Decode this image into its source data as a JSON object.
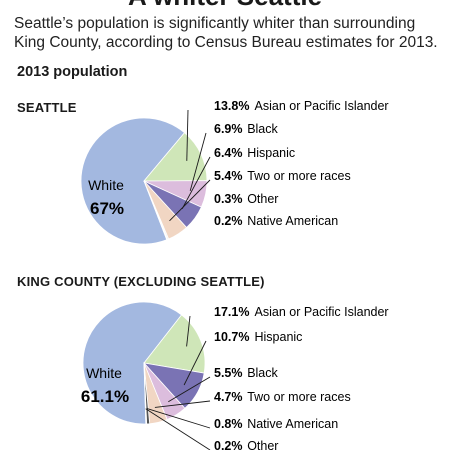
{
  "header": {
    "headline": "A whiter Seattle",
    "intro": "Seattle’s population is significantly whiter than surrounding King County, according to Census Bureau estimates for 2013.",
    "section_title": "2013 population"
  },
  "chart_data": [
    {
      "type": "pie",
      "title": "SEATTLE",
      "slices": [
        {
          "label": "White",
          "value": 67,
          "color": "#a3b8e0"
        },
        {
          "label": "Asian or Pacific Islander",
          "value": 13.8,
          "color": "#cfe6b8"
        },
        {
          "label": "Black",
          "value": 6.9,
          "color": "#dcbddd"
        },
        {
          "label": "Hispanic",
          "value": 6.4,
          "color": "#7a73b4"
        },
        {
          "label": "Two or more races",
          "value": 5.4,
          "color": "#f1d6c3"
        },
        {
          "label": "Other",
          "value": 0.3,
          "color": "#e6e6e6"
        },
        {
          "label": "Native American",
          "value": 0.2,
          "color": "#555555"
        }
      ],
      "display_labels": {
        "White": "67%",
        "Asian or Pacific Islander": "13.8%",
        "Black": "6.9%",
        "Hispanic": "6.4%",
        "Two or more races": "5.4%",
        "Other": "0.3%",
        "Native American": "0.2%"
      }
    },
    {
      "type": "pie",
      "title": "KING COUNTY (EXCLUDING SEATTLE)",
      "slices": [
        {
          "label": "White",
          "value": 61.1,
          "color": "#a3b8e0"
        },
        {
          "label": "Asian or Pacific Islander",
          "value": 17.1,
          "color": "#cfe6b8"
        },
        {
          "label": "Hispanic",
          "value": 10.7,
          "color": "#7a73b4"
        },
        {
          "label": "Black",
          "value": 5.5,
          "color": "#dcbddd"
        },
        {
          "label": "Two or more races",
          "value": 4.7,
          "color": "#f1d6c3"
        },
        {
          "label": "Native American",
          "value": 0.8,
          "color": "#555555"
        },
        {
          "label": "Other",
          "value": 0.2,
          "color": "#e6e6e6"
        }
      ],
      "display_labels": {
        "White": "61.1%",
        "Asian or Pacific Islander": "17.1%",
        "Hispanic": "10.7%",
        "Black": "5.5%",
        "Two or more races": "4.7%",
        "Native American": "0.8%",
        "Other": "0.2%"
      }
    }
  ]
}
